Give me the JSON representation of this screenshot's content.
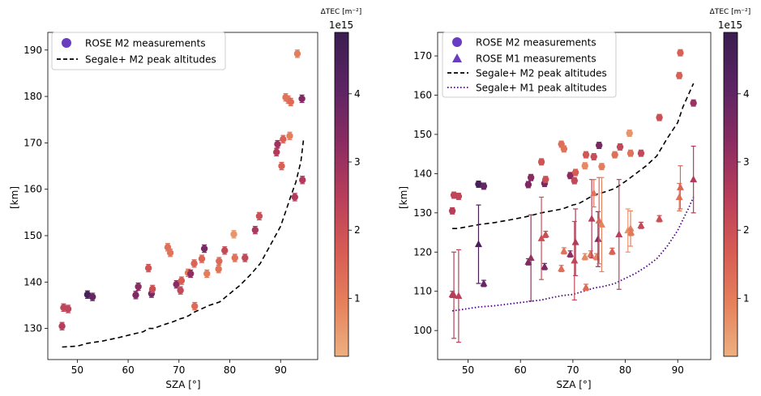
{
  "colormap": {
    "label": "ΔTEC [m⁻²]",
    "offset": "1e15",
    "ticks": [
      1,
      2,
      3,
      4
    ],
    "range": [
      0.15,
      4.9
    ],
    "stops": [
      "#edb081",
      "#e5805c",
      "#d65a54",
      "#b63d5b",
      "#892b62",
      "#5a2463",
      "#3b1d50"
    ]
  },
  "chart_data": [
    {
      "type": "scatter",
      "title": "",
      "xlabel": "SZA [°]",
      "ylabel": "[km]",
      "xlim": [
        44.2,
        97.3
      ],
      "ylim": [
        123.3,
        193.8
      ],
      "xticks": [
        50,
        60,
        70,
        80,
        90
      ],
      "yticks": [
        130,
        140,
        150,
        160,
        170,
        180,
        190
      ],
      "legend": {
        "position": "top-left",
        "entries": [
          {
            "label": "ROSE M2 measurements",
            "marker": "circle",
            "color": "#6a3cc1"
          },
          {
            "label": "Segale+ M2 peak altitudes",
            "style": "dashed",
            "color": "#000000"
          }
        ]
      },
      "series": [
        {
          "name": "ROSE M2 measurements",
          "marker": "circle",
          "points": [
            {
              "x": 47.0,
              "y": 130.5,
              "err": 0.8,
              "c": 2.5
            },
            {
              "x": 47.3,
              "y": 134.5,
              "err": 0.8,
              "c": 2.3
            },
            {
              "x": 48.2,
              "y": 134.2,
              "err": 0.8,
              "c": 2.3
            },
            {
              "x": 52.0,
              "y": 137.3,
              "err": 0.8,
              "c": 4.6
            },
            {
              "x": 53.0,
              "y": 136.8,
              "err": 0.8,
              "c": 3.9
            },
            {
              "x": 61.5,
              "y": 137.2,
              "err": 0.8,
              "c": 3.5
            },
            {
              "x": 62.0,
              "y": 139.0,
              "err": 0.8,
              "c": 3.3
            },
            {
              "x": 64.0,
              "y": 143.0,
              "err": 0.8,
              "c": 1.9
            },
            {
              "x": 64.6,
              "y": 137.5,
              "err": 0.8,
              "c": 3.6
            },
            {
              "x": 64.8,
              "y": 138.5,
              "err": 0.8,
              "c": 2.0
            },
            {
              "x": 67.8,
              "y": 147.5,
              "err": 0.8,
              "c": 1.3
            },
            {
              "x": 68.3,
              "y": 146.3,
              "err": 0.8,
              "c": 1.2
            },
            {
              "x": 69.5,
              "y": 139.5,
              "err": 0.8,
              "c": 3.3
            },
            {
              "x": 70.3,
              "y": 138.2,
              "err": 0.8,
              "c": 2.2
            },
            {
              "x": 70.5,
              "y": 140.3,
              "err": 0.8,
              "c": 1.7
            },
            {
              "x": 71.8,
              "y": 142.0,
              "err": 0.8,
              "c": 1.1
            },
            {
              "x": 72.3,
              "y": 141.8,
              "err": 0.8,
              "c": 3.2
            },
            {
              "x": 73.0,
              "y": 144.0,
              "err": 0.8,
              "c": 1.5
            },
            {
              "x": 73.1,
              "y": 134.8,
              "err": 0.8,
              "c": 1.4
            },
            {
              "x": 74.5,
              "y": 145.0,
              "err": 0.8,
              "c": 1.5
            },
            {
              "x": 75.0,
              "y": 147.2,
              "err": 0.8,
              "c": 3.6
            },
            {
              "x": 75.5,
              "y": 141.8,
              "err": 0.8,
              "c": 1.0
            },
            {
              "x": 77.8,
              "y": 142.8,
              "err": 0.8,
              "c": 1.2
            },
            {
              "x": 77.9,
              "y": 144.5,
              "err": 0.8,
              "c": 1.4
            },
            {
              "x": 79.0,
              "y": 146.8,
              "err": 0.8,
              "c": 2.2
            },
            {
              "x": 80.8,
              "y": 150.3,
              "err": 0.8,
              "c": 0.6
            },
            {
              "x": 81.0,
              "y": 145.2,
              "err": 0.8,
              "c": 1.2
            },
            {
              "x": 83.0,
              "y": 145.2,
              "err": 0.8,
              "c": 2.2
            },
            {
              "x": 85.0,
              "y": 151.2,
              "err": 0.8,
              "c": 2.7
            },
            {
              "x": 85.8,
              "y": 154.2,
              "err": 0.8,
              "c": 2.0
            },
            {
              "x": 89.2,
              "y": 168.0,
              "err": 0.8,
              "c": 2.6
            },
            {
              "x": 89.4,
              "y": 169.7,
              "err": 0.8,
              "c": 2.9
            },
            {
              "x": 90.2,
              "y": 165.0,
              "err": 0.8,
              "c": 1.6
            },
            {
              "x": 90.5,
              "y": 170.8,
              "err": 0.8,
              "c": 1.6
            },
            {
              "x": 91.0,
              "y": 179.8,
              "err": 0.8,
              "c": 1.2
            },
            {
              "x": 91.5,
              "y": 179.3,
              "err": 0.8,
              "c": 1.2
            },
            {
              "x": 91.8,
              "y": 171.5,
              "err": 0.8,
              "c": 1.0
            },
            {
              "x": 92.0,
              "y": 178.8,
              "err": 0.8,
              "c": 1.4
            },
            {
              "x": 92.8,
              "y": 158.3,
              "err": 0.8,
              "c": 2.6
            },
            {
              "x": 93.3,
              "y": 189.2,
              "err": 0.8,
              "c": 1.0
            },
            {
              "x": 94.2,
              "y": 179.5,
              "err": 0.8,
              "c": 3.4
            },
            {
              "x": 94.3,
              "y": 162.0,
              "err": 0.8,
              "c": 2.6
            }
          ]
        },
        {
          "name": "Segale+ M2 peak altitudes",
          "style": "dashed",
          "color": "#000000",
          "x": [
            47,
            50,
            52,
            55,
            58,
            61,
            63,
            64,
            65,
            67,
            69,
            70,
            71,
            72,
            73,
            74,
            75,
            76,
            78,
            80,
            82,
            84,
            86,
            88,
            90,
            91,
            92,
            93,
            94,
            94.5
          ],
          "y": [
            126,
            126.2,
            126.8,
            127.3,
            128,
            128.8,
            129.3,
            130,
            130,
            130.8,
            131.5,
            132,
            132.3,
            132.8,
            133.5,
            134,
            134.5,
            135,
            135.7,
            137.5,
            139.3,
            141.5,
            144,
            148,
            152,
            155.2,
            158.5,
            161.5,
            166,
            170.5
          ]
        }
      ]
    },
    {
      "type": "scatter",
      "title": "",
      "xlabel": "SZA [°]",
      "ylabel": "[km]",
      "xlim": [
        44.2,
        96.3
      ],
      "ylim": [
        92.6,
        176.0
      ],
      "xticks": [
        50,
        60,
        70,
        80,
        90
      ],
      "yticks": [
        100,
        110,
        120,
        130,
        140,
        150,
        160,
        170
      ],
      "legend": {
        "position": "top-left",
        "entries": [
          {
            "label": "ROSE M2 measurements",
            "marker": "circle",
            "color": "#6a3cc1"
          },
          {
            "label": "ROSE M1 measurements",
            "marker": "triangle",
            "color": "#6a3cc1"
          },
          {
            "label": "Segale+ M2 peak altitudes",
            "style": "dashed",
            "color": "#000000"
          },
          {
            "label": "Segale+ M1 peak altitudes",
            "style": "dotted",
            "color": "#4b0082"
          }
        ]
      },
      "series": [
        {
          "name": "ROSE M2 measurements",
          "marker": "circle",
          "points": [
            {
              "x": 47.0,
              "y": 130.5,
              "err": 0.8,
              "c": 2.5
            },
            {
              "x": 47.3,
              "y": 134.5,
              "err": 0.8,
              "c": 2.3
            },
            {
              "x": 48.2,
              "y": 134.2,
              "err": 0.8,
              "c": 2.3
            },
            {
              "x": 52.0,
              "y": 137.3,
              "err": 0.8,
              "c": 4.6
            },
            {
              "x": 53.0,
              "y": 136.8,
              "err": 0.8,
              "c": 3.9
            },
            {
              "x": 61.5,
              "y": 137.2,
              "err": 0.8,
              "c": 3.5
            },
            {
              "x": 62.0,
              "y": 139.0,
              "err": 0.8,
              "c": 3.3
            },
            {
              "x": 64.0,
              "y": 143.0,
              "err": 0.8,
              "c": 1.9
            },
            {
              "x": 64.6,
              "y": 137.5,
              "err": 0.8,
              "c": 3.6
            },
            {
              "x": 64.8,
              "y": 138.5,
              "err": 0.8,
              "c": 2.0
            },
            {
              "x": 67.8,
              "y": 147.5,
              "err": 0.8,
              "c": 1.3
            },
            {
              "x": 68.3,
              "y": 146.3,
              "err": 0.8,
              "c": 1.2
            },
            {
              "x": 69.5,
              "y": 139.5,
              "err": 0.8,
              "c": 3.3
            },
            {
              "x": 70.3,
              "y": 138.2,
              "err": 0.8,
              "c": 2.2
            },
            {
              "x": 70.5,
              "y": 140.3,
              "err": 0.8,
              "c": 1.7
            },
            {
              "x": 72.3,
              "y": 142.0,
              "err": 0.8,
              "c": 0.8
            },
            {
              "x": 72.5,
              "y": 144.8,
              "err": 0.8,
              "c": 1.8
            },
            {
              "x": 74.0,
              "y": 144.3,
              "err": 0.8,
              "c": 2.1
            },
            {
              "x": 75.0,
              "y": 147.2,
              "err": 0.8,
              "c": 3.6
            },
            {
              "x": 75.5,
              "y": 141.8,
              "err": 0.8,
              "c": 1.0
            },
            {
              "x": 78.0,
              "y": 144.8,
              "err": 0.8,
              "c": 1.3
            },
            {
              "x": 79.0,
              "y": 146.8,
              "err": 0.8,
              "c": 2.2
            },
            {
              "x": 80.8,
              "y": 150.3,
              "err": 0.8,
              "c": 0.6
            },
            {
              "x": 81.0,
              "y": 145.2,
              "err": 0.8,
              "c": 1.2
            },
            {
              "x": 83.0,
              "y": 145.2,
              "err": 0.8,
              "c": 2.2
            },
            {
              "x": 86.5,
              "y": 154.3,
              "err": 0.8,
              "c": 2.0
            },
            {
              "x": 90.3,
              "y": 165.0,
              "err": 0.8,
              "c": 1.6
            },
            {
              "x": 90.5,
              "y": 170.8,
              "err": 0.8,
              "c": 1.6
            },
            {
              "x": 93.0,
              "y": 158.0,
              "err": 0.8,
              "c": 3.0
            }
          ]
        },
        {
          "name": "ROSE M1 measurements",
          "marker": "triangle",
          "points": [
            {
              "x": 47.0,
              "y": 109.2,
              "err": 0.8,
              "c": 2.5
            },
            {
              "x": 47.3,
              "y": 109.0,
              "err": 11.0,
              "c": 2.5
            },
            {
              "x": 48.2,
              "y": 108.8,
              "err": 11.8,
              "c": 2.4
            },
            {
              "x": 52.0,
              "y": 122.0,
              "err": 10.0,
              "c": 4.6
            },
            {
              "x": 53.0,
              "y": 112.0,
              "err": 0.8,
              "c": 3.9
            },
            {
              "x": 61.5,
              "y": 117.5,
              "err": 0.8,
              "c": 3.5
            },
            {
              "x": 62.0,
              "y": 118.5,
              "err": 11.0,
              "c": 3.1
            },
            {
              "x": 64.0,
              "y": 123.5,
              "err": 10.5,
              "c": 2.0
            },
            {
              "x": 64.6,
              "y": 116.3,
              "err": 0.8,
              "c": 3.6
            },
            {
              "x": 64.8,
              "y": 124.5,
              "err": 0.8,
              "c": 2.0
            },
            {
              "x": 67.8,
              "y": 115.8,
              "err": 0.8,
              "c": 1.3
            },
            {
              "x": 68.3,
              "y": 120.3,
              "err": 0.8,
              "c": 1.2
            },
            {
              "x": 69.5,
              "y": 119.5,
              "err": 0.8,
              "c": 3.2
            },
            {
              "x": 70.3,
              "y": 117.8,
              "err": 10.0,
              "c": 2.2
            },
            {
              "x": 70.5,
              "y": 122.5,
              "err": 8.5,
              "c": 2.6
            },
            {
              "x": 72.3,
              "y": 118.8,
              "err": 0.8,
              "c": 0.8
            },
            {
              "x": 72.5,
              "y": 111.0,
              "err": 0.8,
              "c": 1.4
            },
            {
              "x": 73.4,
              "y": 119.5,
              "err": 0.8,
              "c": 1.2
            },
            {
              "x": 73.6,
              "y": 128.5,
              "err": 10.0,
              "c": 2.5
            },
            {
              "x": 74.0,
              "y": 135.0,
              "err": 3.5,
              "c": 1.2
            },
            {
              "x": 74.5,
              "y": 118.8,
              "err": 0.8,
              "c": 0.9
            },
            {
              "x": 74.8,
              "y": 123.3,
              "err": 7.0,
              "c": 3.4
            },
            {
              "x": 75.0,
              "y": 128.0,
              "err": 11.0,
              "c": 1.4
            },
            {
              "x": 75.5,
              "y": 127.0,
              "err": 12.0,
              "c": 0.9
            },
            {
              "x": 77.5,
              "y": 120.2,
              "err": 0.8,
              "c": 1.6
            },
            {
              "x": 78.8,
              "y": 124.5,
              "err": 14.0,
              "c": 2.4
            },
            {
              "x": 80.5,
              "y": 125.5,
              "err": 5.5,
              "c": 0.6
            },
            {
              "x": 81.0,
              "y": 126.0,
              "err": 4.5,
              "c": 0.9
            },
            {
              "x": 81.1,
              "y": 125.0,
              "err": 0.8,
              "c": 1.1
            },
            {
              "x": 83.0,
              "y": 126.8,
              "err": 0.8,
              "c": 2.2
            },
            {
              "x": 86.5,
              "y": 128.5,
              "err": 0.8,
              "c": 2.0
            },
            {
              "x": 90.3,
              "y": 134.0,
              "err": 3.5,
              "c": 1.2
            },
            {
              "x": 90.5,
              "y": 136.5,
              "err": 5.5,
              "c": 1.5
            },
            {
              "x": 93.0,
              "y": 138.5,
              "err": 8.5,
              "c": 2.6
            }
          ]
        },
        {
          "name": "Segale+ M2 peak altitudes",
          "style": "dashed",
          "color": "#000000",
          "x": [
            47,
            48,
            52,
            55,
            58,
            61,
            64,
            66,
            68,
            70,
            71,
            72,
            73,
            74,
            76,
            78,
            80,
            82,
            84,
            86,
            88,
            90,
            91,
            92,
            93
          ],
          "y": [
            126,
            126,
            127,
            127.5,
            128.2,
            129,
            130,
            130.5,
            131,
            132,
            132.3,
            133,
            133.8,
            134.5,
            135.3,
            136.2,
            138,
            140,
            142,
            144.5,
            149,
            153,
            157,
            160,
            163
          ]
        },
        {
          "name": "Segale+ M1 peak altitudes",
          "style": "dotted",
          "color": "#4b0082",
          "x": [
            47,
            48,
            52,
            55,
            58,
            61,
            64,
            66,
            68,
            70,
            72,
            74,
            76,
            78,
            80,
            82,
            84,
            86,
            88,
            90,
            91,
            92,
            93
          ],
          "y": [
            105,
            105.2,
            106,
            106.3,
            106.8,
            107.3,
            107.8,
            108.4,
            108.9,
            109.2,
            110,
            110.8,
            111.3,
            112,
            113.3,
            114.6,
            116.3,
            118.3,
            121.5,
            125.5,
            128.3,
            131,
            134
          ]
        }
      ]
    }
  ]
}
